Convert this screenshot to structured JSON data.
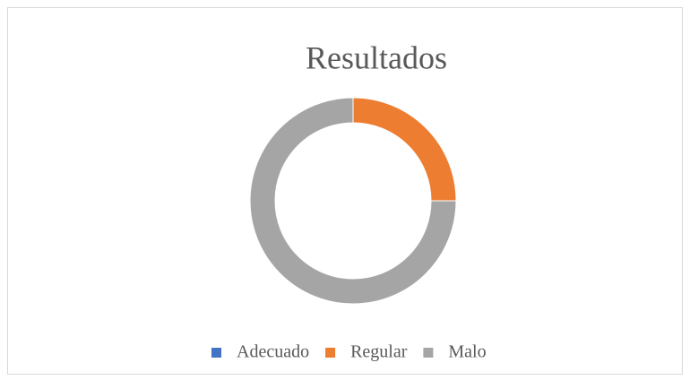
{
  "chart_data": {
    "type": "donut",
    "title": "Resultados",
    "categories": [
      "Adecuado",
      "Regular",
      "Malo"
    ],
    "values": [
      0,
      25,
      75
    ],
    "colors": [
      "#4472c4",
      "#ed7d31",
      "#a5a5a5"
    ],
    "legend": "bottom"
  }
}
